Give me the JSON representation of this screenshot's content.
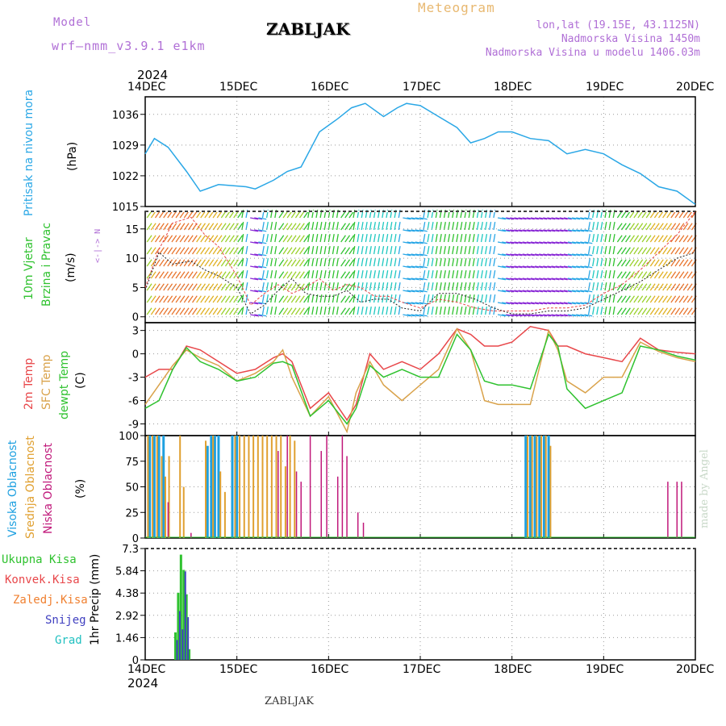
{
  "header": {
    "model_label": "Model",
    "model_value": "wrf—nmm_v3.9.1  e1km",
    "station": "ZABLJAK",
    "meteogram": "Meteogram",
    "lonlat": "lon,lat (19.15E, 43.1125N)",
    "elevation": "Nadmorska Visina 1450m",
    "model_elevation": "Nadmorska Visina u modelu 1406.03m"
  },
  "footer": {
    "station": "ZABLJAK",
    "credit": "made by Angel"
  },
  "time_axis": {
    "year": "2024",
    "labels": [
      "14DEC",
      "15DEC",
      "16DEC",
      "17DEC",
      "18DEC",
      "19DEC",
      "20DEC"
    ]
  },
  "colors": {
    "pressure": "#2aa7e6",
    "temp2m": "#e8474a",
    "sfc_temp": "#d9a24a",
    "dewpoint": "#2fc22f",
    "high_cloud": "#1ea0e0",
    "mid_cloud": "#e0a030",
    "low_cloud": "#c0187a",
    "total_precip": "#2fc22f",
    "conv_precip": "#e8474a",
    "strat_precip": "#f08030",
    "snow": "#4040c0",
    "graupel": "#20c0c0"
  },
  "chart_data": [
    {
      "type": "line",
      "panel": "pressure",
      "ylabel_main": "Pritisak na nivou mora",
      "ylabel_unit": "(hPa)",
      "yticks": [
        "1015",
        "1022",
        "1029",
        "1036"
      ],
      "ylim": [
        1015,
        1040
      ],
      "x_days": [
        0,
        0.1,
        0.25,
        0.45,
        0.6,
        0.8,
        1.1,
        1.2,
        1.4,
        1.55,
        1.7,
        1.8,
        1.9,
        2.0,
        2.1,
        2.25,
        2.4,
        2.6,
        2.75,
        2.85,
        3.0,
        3.2,
        3.4,
        3.55,
        3.7,
        3.85,
        4.0,
        4.2,
        4.4,
        4.6,
        4.8,
        5.0,
        5.2,
        5.4,
        5.6,
        5.8,
        6.0
      ],
      "series": [
        {
          "values": [
            1027,
            1030.5,
            1028.5,
            1023,
            1018.5,
            1020,
            1019.5,
            1019,
            1021,
            1023,
            1024,
            1028,
            1032,
            1033.5,
            1035,
            1037.5,
            1038.5,
            1035.5,
            1037.5,
            1038.5,
            1038,
            1035.5,
            1033,
            1029.5,
            1030.5,
            1032,
            1032,
            1030.5,
            1030,
            1027,
            1028,
            1027,
            1024.5,
            1022.5,
            1019.5,
            1018.5,
            1015.5
          ]
        }
      ]
    },
    {
      "type": "line",
      "panel": "wind",
      "ylabel_main": "10m Vjetar",
      "ylabel_main2": "Brzina i Pravac",
      "ylabel_unit": "(m/s)",
      "compass": "N\n^\n|\nW <--|--> E\n|\nv\nS",
      "yticks": [
        "0",
        "5",
        "10",
        "15"
      ],
      "ylim": [
        -1,
        18
      ],
      "x_days": [
        0,
        0.15,
        0.3,
        0.5,
        0.65,
        0.8,
        1.0,
        1.15,
        1.3,
        1.45,
        1.6,
        1.75,
        1.9,
        2.05,
        2.2,
        2.35,
        2.5,
        2.65,
        2.8,
        3.0,
        3.2,
        3.4,
        3.6,
        3.8,
        4.0,
        4.2,
        4.4,
        4.6,
        4.8,
        5.0,
        5.2,
        5.4,
        5.6,
        5.8,
        6.0
      ],
      "series": [
        {
          "name": "speed",
          "values": [
            4.5,
            11,
            9,
            9.5,
            8,
            7,
            5,
            0.5,
            2,
            4.5,
            6.5,
            4,
            3.5,
            3.5,
            4.5,
            2.5,
            3,
            3,
            1.5,
            1,
            4,
            4,
            3,
            1.5,
            0.5,
            0.5,
            1,
            1,
            1.5,
            3,
            4.5,
            6,
            8,
            10,
            11
          ]
        },
        {
          "name": "gust",
          "values": [
            5,
            11.5,
            16,
            17,
            14,
            12,
            7,
            2,
            4,
            5.5,
            4,
            5,
            6.5,
            4.5,
            5.5,
            5,
            3.5,
            3.5,
            2.5,
            1.5,
            3,
            2.5,
            1.5,
            1,
            1,
            1,
            1.5,
            1.5,
            2,
            4,
            5.5,
            8,
            11,
            14,
            18
          ]
        }
      ]
    },
    {
      "type": "line",
      "panel": "temperature",
      "ylabel_lines": [
        "2m Temp",
        "SFC Temp",
        "dewpt Temp"
      ],
      "ylabel_unit": "(C)",
      "yticks": [
        "-9",
        "-6",
        "-3",
        "0",
        "3"
      ],
      "ylim": [
        -10.5,
        4
      ],
      "x_days": [
        0,
        0.15,
        0.3,
        0.45,
        0.6,
        0.8,
        1.0,
        1.2,
        1.4,
        1.5,
        1.6,
        1.8,
        2.0,
        2.2,
        2.3,
        2.45,
        2.6,
        2.8,
        3.0,
        3.2,
        3.4,
        3.55,
        3.7,
        3.85,
        4.0,
        4.2,
        4.4,
        4.5,
        4.6,
        4.8,
        5.0,
        5.2,
        5.4,
        5.6,
        5.8,
        6.0
      ],
      "series": [
        {
          "name": "2m Temp",
          "values": [
            -3,
            -2,
            -2,
            1,
            0.5,
            -1,
            -2.5,
            -2,
            -0.5,
            0,
            -1,
            -7,
            -5,
            -8.5,
            -6.5,
            0,
            -2,
            -1,
            -2,
            0,
            3.2,
            2.5,
            1,
            1,
            1.5,
            3.5,
            3,
            1,
            1,
            0,
            -0.5,
            -1,
            2,
            0.5,
            0.2,
            0
          ]
        },
        {
          "name": "SFC Temp",
          "values": [
            -6.5,
            -4,
            -1.5,
            0.5,
            -0.5,
            -1.5,
            -3.5,
            -2.5,
            -1,
            0.5,
            -3,
            -8,
            -5.5,
            -10,
            -5,
            -1,
            -4,
            -6,
            -4,
            -2,
            3.2,
            0.5,
            -6,
            -6.5,
            -6.5,
            -6.5,
            3,
            0.5,
            -3.5,
            -5,
            -3,
            -3,
            1.5,
            0.3,
            -0.5,
            -1
          ]
        },
        {
          "name": "dewpt Temp",
          "values": [
            -7,
            -6,
            -2,
            0.8,
            -1,
            -2,
            -3.5,
            -3,
            -1.2,
            -1,
            -1.5,
            -8,
            -6,
            -9,
            -7,
            -1.5,
            -3,
            -2,
            -3,
            -3,
            2.5,
            0.5,
            -3.5,
            -4,
            -4,
            -4.5,
            2.5,
            1,
            -4.5,
            -7,
            -6,
            -5,
            1,
            0.5,
            -0.3,
            -0.8
          ]
        }
      ]
    },
    {
      "type": "bar",
      "panel": "cloud_cover",
      "ylabel_lines": [
        "Visoka Oblacnost",
        "Srednja Oblacnost",
        "Niska Oblacnost"
      ],
      "ylabel_unit": "(%)",
      "yticks": [
        "0",
        "25",
        "50",
        "75",
        "100"
      ],
      "ylim": [
        0,
        100
      ],
      "series": [
        {
          "name": "Visoka Oblacnost",
          "x_days": [
            0.05,
            0.1,
            0.15,
            0.2,
            0.68,
            0.72,
            0.76,
            0.8,
            0.95,
            1.0,
            4.15,
            4.2,
            4.25,
            4.3,
            4.35,
            4.4
          ],
          "values": [
            100,
            100,
            100,
            100,
            90,
            100,
            100,
            100,
            100,
            100,
            100,
            100,
            100,
            100,
            100,
            100
          ]
        },
        {
          "name": "Srednja Oblacnost",
          "x_days": [
            0.03,
            0.08,
            0.13,
            0.18,
            0.22,
            0.26,
            0.38,
            0.42,
            0.66,
            0.74,
            0.82,
            0.87,
            0.98,
            1.03,
            1.08,
            1.13,
            1.18,
            1.23,
            1.28,
            1.33,
            1.38,
            1.43,
            1.48,
            1.53,
            1.58,
            1.63,
            4.17,
            4.22,
            4.27,
            4.32,
            4.37,
            4.42
          ],
          "values": [
            100,
            100,
            100,
            80,
            60,
            80,
            100,
            50,
            95,
            100,
            65,
            45,
            100,
            100,
            100,
            100,
            100,
            100,
            100,
            100,
            100,
            100,
            100,
            70,
            100,
            95,
            100,
            100,
            100,
            100,
            100,
            90
          ]
        },
        {
          "name": "Niska Oblacnost",
          "x_days": [
            0.25,
            0.5,
            1.45,
            1.55,
            1.65,
            1.7,
            1.8,
            1.92,
            1.98,
            2.1,
            2.15,
            2.2,
            2.32,
            2.38,
            5.7,
            5.8,
            5.85
          ],
          "values": [
            35,
            5,
            85,
            100,
            65,
            55,
            100,
            85,
            100,
            60,
            100,
            80,
            25,
            15,
            55,
            55,
            55
          ]
        }
      ]
    },
    {
      "type": "bar",
      "panel": "precipitation",
      "ylabel_lines": [
        "Ukupna Kisa",
        "Konvek.Kisa",
        "Zaledj.Kisa",
        "Snijeg",
        "Grad"
      ],
      "ylabel_unit": "1hr Precip (mm)",
      "yticks": [
        "0",
        "1.46",
        "2.92",
        "4.38",
        "5.84",
        "7.3"
      ],
      "ylim": [
        0,
        7.3
      ],
      "categories_days": [
        0.33,
        0.36,
        0.39,
        0.42,
        0.45,
        0.48,
        0.51
      ],
      "series": [
        {
          "name": "Ukupna Kisa",
          "values": [
            1.8,
            4.4,
            6.9,
            5.9,
            4.3,
            0.7,
            0
          ]
        },
        {
          "name": "Snijeg",
          "values": [
            1.3,
            3.2,
            2.0,
            5.8,
            2.8,
            0,
            0
          ]
        }
      ]
    }
  ]
}
